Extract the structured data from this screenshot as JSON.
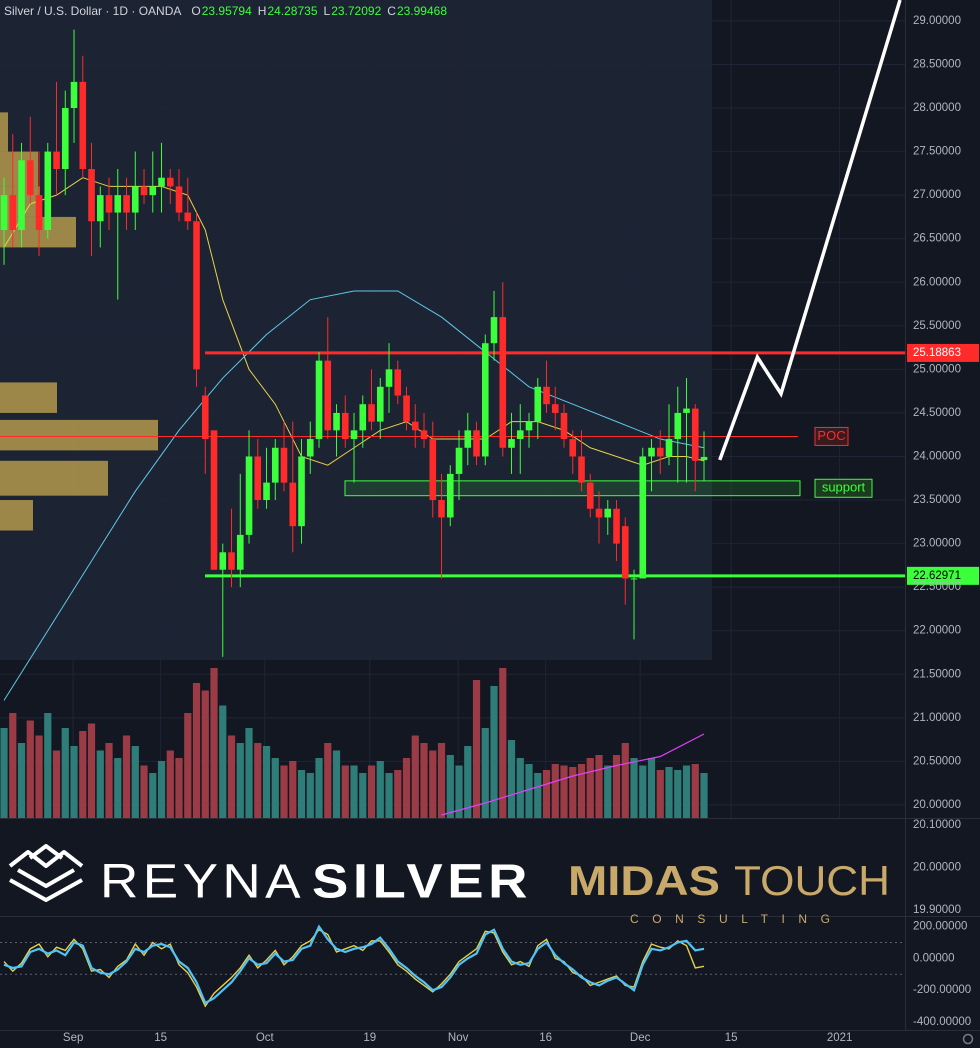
{
  "chart_data": [
    {
      "type": "candlestick",
      "title": "Silver / U.S. Dollar · 1D · OANDA",
      "ohlc": [
        {
          "label": "O",
          "value": 23.95794
        },
        {
          "label": "H",
          "value": 24.28735
        },
        {
          "label": "L",
          "value": 23.72092
        },
        {
          "label": "C",
          "value": 23.99468
        }
      ],
      "up_color": "#3cff3c",
      "down_color": "#ff2b2b",
      "xlim": [
        -0.46,
        102.97
      ],
      "xticks": [
        {
          "value": 7.9,
          "label": "Sep"
        },
        {
          "value": 17.9,
          "label": "15"
        },
        {
          "value": 29.8,
          "label": "Oct"
        },
        {
          "value": 41.8,
          "label": "19"
        },
        {
          "value": 51.9,
          "label": "Nov"
        },
        {
          "value": 61.9,
          "label": "16"
        },
        {
          "value": 72.7,
          "label": "Dec"
        },
        {
          "value": 83.1,
          "label": "15"
        },
        {
          "value": 95.5,
          "label": "2021"
        }
      ],
      "ylim": [
        19.85,
        29.24
      ],
      "yticks": [
        {
          "value": 20,
          "label": "20.00000"
        },
        {
          "value": 20.5,
          "label": "20.50000"
        },
        {
          "value": 21,
          "label": "21.00000"
        },
        {
          "value": 21.5,
          "label": "21.50000"
        },
        {
          "value": 22,
          "label": "22.00000"
        },
        {
          "value": 22.5,
          "label": "22.50000"
        },
        {
          "value": 23,
          "label": "23.00000"
        },
        {
          "value": 23.5,
          "label": "23.50000"
        },
        {
          "value": 24,
          "label": "24.00000"
        },
        {
          "value": 24.5,
          "label": "24.50000"
        },
        {
          "value": 25,
          "label": "25.00000"
        },
        {
          "value": 25.5,
          "label": "25.50000"
        },
        {
          "value": 26,
          "label": "26.00000"
        },
        {
          "value": 26.5,
          "label": "26.50000"
        },
        {
          "value": 27,
          "label": "27.00000"
        },
        {
          "value": 27.5,
          "label": "27.50000"
        },
        {
          "value": 28,
          "label": "28.00000"
        },
        {
          "value": 28.5,
          "label": "28.50000"
        },
        {
          "value": 29,
          "label": "29.00000"
        }
      ],
      "grid": true,
      "open": [
        26.6,
        27.0,
        26.6,
        27.4,
        27.0,
        26.6,
        27.5,
        27.3,
        28.0,
        28.3,
        27.3,
        26.7,
        27.0,
        26.8,
        27.0,
        26.8,
        27.1,
        27.0,
        27.1,
        27.2,
        27.1,
        26.8,
        26.7,
        24.7,
        24.3,
        22.7,
        22.9,
        22.7,
        23.1,
        24.0,
        23.5,
        23.7,
        24.1,
        23.7,
        23.2,
        24.0,
        24.2,
        25.1,
        24.3,
        24.5,
        24.2,
        24.3,
        24.6,
        24.4,
        24.8,
        25.0,
        24.7,
        24.4,
        24.3,
        24.2,
        23.5,
        23.3,
        23.8,
        24.1,
        24.3,
        24.0,
        25.3,
        25.6,
        24.1,
        24.2,
        24.3,
        24.4,
        24.8,
        24.6,
        24.5,
        24.2,
        24.0,
        23.7,
        23.4,
        23.3,
        23.4,
        23.2,
        22.6,
        22.6,
        24.0,
        24.1,
        24.0,
        24.2,
        24.5,
        24.55,
        23.95794
      ],
      "high": [
        27.2,
        27.7,
        27.6,
        27.9,
        27.5,
        27.6,
        28.3,
        28.2,
        28.9,
        28.6,
        27.6,
        27.1,
        27.2,
        27.3,
        27.2,
        27.5,
        27.3,
        27.5,
        27.6,
        27.3,
        27.3,
        27.2,
        26.8,
        24.8,
        24.3,
        23.0,
        23.4,
        23.8,
        24.3,
        24.2,
        24.1,
        24.2,
        24.4,
        24.4,
        24.2,
        24.4,
        25.2,
        25.6,
        24.6,
        24.7,
        24.5,
        24.7,
        25.0,
        24.9,
        25.3,
        25.1,
        24.8,
        24.6,
        24.5,
        24.4,
        23.8,
        23.9,
        24.3,
        24.5,
        24.4,
        25.4,
        25.9,
        26.0,
        24.5,
        24.6,
        24.5,
        24.9,
        25.1,
        24.8,
        24.6,
        24.3,
        24.3,
        23.8,
        23.6,
        23.5,
        23.5,
        23.3,
        22.7,
        24.1,
        24.2,
        24.3,
        24.6,
        24.8,
        24.9,
        24.6,
        24.28735
      ],
      "low": [
        26.2,
        26.4,
        26.4,
        26.9,
        26.3,
        26.5,
        27.0,
        27.0,
        27.6,
        27.2,
        26.3,
        26.4,
        26.6,
        25.8,
        26.6,
        26.6,
        26.9,
        26.8,
        26.8,
        26.9,
        26.7,
        26.6,
        24.8,
        23.8,
        22.7,
        21.7,
        22.5,
        22.5,
        23.0,
        23.4,
        23.4,
        23.5,
        23.6,
        22.9,
        23.0,
        23.8,
        24.1,
        24.2,
        24.0,
        24.1,
        23.7,
        24.1,
        24.3,
        24.2,
        24.5,
        24.6,
        24.3,
        24.1,
        24.1,
        23.3,
        22.6,
        23.2,
        23.5,
        23.9,
        23.9,
        23.9,
        25.1,
        24.0,
        23.8,
        23.8,
        24.1,
        24.2,
        24.5,
        24.3,
        24.1,
        23.8,
        23.6,
        23.3,
        23.0,
        23.1,
        22.8,
        22.3,
        21.9,
        22.6,
        23.6,
        23.8,
        23.9,
        23.7,
        23.7,
        23.6,
        23.72092
      ],
      "close": [
        27.0,
        26.6,
        27.4,
        27.0,
        26.6,
        27.5,
        27.3,
        28.0,
        28.3,
        27.3,
        26.7,
        27.0,
        26.8,
        27.0,
        26.8,
        27.1,
        27.0,
        27.1,
        27.2,
        27.1,
        26.8,
        26.7,
        25.0,
        24.2,
        22.7,
        22.9,
        22.7,
        23.1,
        24.0,
        23.5,
        23.7,
        24.1,
        23.7,
        23.2,
        24.0,
        24.2,
        25.1,
        24.3,
        24.5,
        24.2,
        24.3,
        24.6,
        24.4,
        24.8,
        25.0,
        24.7,
        24.4,
        24.3,
        24.2,
        23.5,
        23.3,
        23.8,
        24.1,
        24.3,
        24.0,
        25.3,
        25.6,
        24.1,
        24.2,
        24.3,
        24.4,
        24.8,
        24.6,
        24.5,
        24.2,
        24.0,
        23.7,
        23.4,
        23.3,
        23.4,
        23.0,
        22.6,
        22.6,
        24.0,
        24.1,
        24.0,
        24.2,
        24.5,
        24.55,
        23.95,
        23.99468
      ],
      "series": [
        {
          "color": "#e8d04a",
          "x": [
            0,
            3,
            6,
            9,
            12,
            15,
            18,
            21,
            23,
            25,
            28,
            31,
            34,
            37,
            40,
            43,
            46,
            49,
            52,
            55,
            58,
            61,
            64,
            67,
            70,
            73,
            76,
            78,
            80
          ],
          "values": [
            26.4,
            26.9,
            27.0,
            27.2,
            27.1,
            27.1,
            27.1,
            27.0,
            26.6,
            25.8,
            25.0,
            24.6,
            24.0,
            23.9,
            24.1,
            24.3,
            24.4,
            24.2,
            24.2,
            24.2,
            24.4,
            24.4,
            24.3,
            24.1,
            24.0,
            23.9,
            24.0,
            24.0,
            23.95
          ]
        },
        {
          "color": "#5fc8e8",
          "x": [
            0,
            5,
            10,
            15,
            20,
            25,
            30,
            35,
            40,
            45,
            50,
            55,
            60,
            65,
            70,
            75,
            80
          ],
          "values": [
            21.2,
            22.0,
            22.8,
            23.6,
            24.3,
            24.9,
            25.4,
            25.8,
            25.9,
            25.9,
            25.6,
            25.2,
            24.8,
            24.6,
            24.4,
            24.2,
            24.1
          ]
        }
      ],
      "hlines": [
        {
          "value": 25.18863,
          "color": "#ff2b2b",
          "text_color": "#ffffff"
        },
        {
          "value": 22.62971,
          "color": "#3cff3c",
          "text_color": "#000000"
        }
      ],
      "poc": {
        "label": "POC",
        "value": 24.23,
        "color": "#ff2b2b"
      },
      "support": {
        "label": "support",
        "low": 23.55,
        "high": 23.72,
        "color": "#3cff3c"
      },
      "forecast": {
        "color": "#ffffff",
        "x": [
          81.8,
          86.1,
          88.8,
          102.4
        ],
        "values": [
          23.96,
          25.14,
          24.72,
          29.24
        ]
      },
      "profile": {
        "color": "#c8a950",
        "low": [
          24.5,
          24.07,
          23.55,
          23.15,
          26.4,
          26.75,
          27.1,
          27.5
        ],
        "high": [
          24.85,
          24.42,
          23.95,
          23.5,
          26.75,
          27.1,
          27.5,
          27.95
        ],
        "size": [
          57,
          158,
          108,
          33,
          76,
          40,
          38,
          8
        ]
      }
    },
    {
      "type": "bar",
      "values": [
        60,
        70,
        50,
        65,
        55,
        70,
        45,
        60,
        48,
        58,
        63,
        45,
        50,
        40,
        55,
        48,
        35,
        30,
        38,
        45,
        40,
        70,
        90,
        85,
        100,
        75,
        55,
        50,
        60,
        50,
        48,
        40,
        35,
        38,
        32,
        30,
        40,
        50,
        45,
        35,
        35,
        30,
        35,
        38,
        30,
        32,
        40,
        55,
        50,
        45,
        50,
        42,
        35,
        48,
        92,
        60,
        88,
        100,
        52,
        40,
        36,
        30,
        32,
        36,
        35,
        34,
        36,
        40,
        42,
        35,
        42,
        50,
        40,
        35,
        40,
        32,
        34,
        32,
        35,
        36,
        30
      ],
      "up_color": "#2e7d78",
      "down_color": "#9b3b45",
      "series": [
        {
          "color": "#e040fb",
          "x": [
            50,
            55,
            60,
            65,
            70,
            75,
            80
          ],
          "values": [
            2,
            10,
            19,
            28,
            35,
            41,
            56
          ]
        }
      ]
    },
    {
      "type": "line",
      "ylim": [
        19.886,
        20.116
      ],
      "yticks": [
        {
          "value": 20.1,
          "label": "20.10000"
        },
        {
          "value": 20,
          "label": "20.00000"
        },
        {
          "value": 19.9,
          "label": "19.90000"
        }
      ]
    },
    {
      "type": "line",
      "ylim": [
        -450,
        260
      ],
      "yticks": [
        {
          "value": 200,
          "label": "200.00000"
        },
        {
          "value": 0,
          "label": "0.00000"
        },
        {
          "value": -200,
          "label": "-200.00000"
        },
        {
          "value": -400,
          "label": "-400.00000"
        }
      ],
      "hlines": [
        100,
        -100
      ],
      "series": [
        {
          "color": "#e8d04a",
          "values": [
            -20,
            -80,
            -30,
            60,
            90,
            10,
            70,
            50,
            120,
            60,
            -80,
            -70,
            -120,
            -50,
            -10,
            90,
            20,
            100,
            60,
            90,
            -40,
            -90,
            -180,
            -300,
            -220,
            -170,
            -120,
            -60,
            20,
            -60,
            -10,
            50,
            -40,
            10,
            80,
            110,
            180,
            150,
            40,
            60,
            80,
            50,
            110,
            110,
            40,
            -40,
            -80,
            -130,
            -170,
            -210,
            -160,
            -100,
            -20,
            20,
            60,
            170,
            160,
            40,
            -40,
            -20,
            -50,
            80,
            120,
            0,
            -20,
            -90,
            -110,
            -170,
            -150,
            -130,
            -110,
            -170,
            -180,
            -20,
            90,
            70,
            60,
            110,
            80,
            -60,
            -50
          ]
        },
        {
          "color": "#4fc3f7",
          "values": [
            -40,
            -60,
            -50,
            40,
            60,
            30,
            50,
            20,
            100,
            80,
            -60,
            -90,
            -100,
            -70,
            -20,
            60,
            40,
            80,
            90,
            70,
            -20,
            -60,
            -150,
            -280,
            -250,
            -200,
            -150,
            -80,
            0,
            -40,
            -30,
            30,
            -20,
            -10,
            60,
            80,
            200,
            120,
            60,
            40,
            60,
            70,
            90,
            130,
            60,
            -20,
            -60,
            -110,
            -150,
            -200,
            -180,
            -120,
            -40,
            0,
            30,
            150,
            180,
            60,
            -20,
            -40,
            -30,
            60,
            100,
            20,
            -30,
            -70,
            -120,
            -150,
            -170,
            -140,
            -120,
            -160,
            -200,
            -40,
            60,
            50,
            70,
            100,
            110,
            50,
            60
          ]
        }
      ]
    }
  ],
  "brand": {
    "left": [
      "REYNA",
      "SILVER"
    ],
    "right": [
      "MIDAS",
      "TOUCH"
    ],
    "tagline": "CONSULTING"
  }
}
